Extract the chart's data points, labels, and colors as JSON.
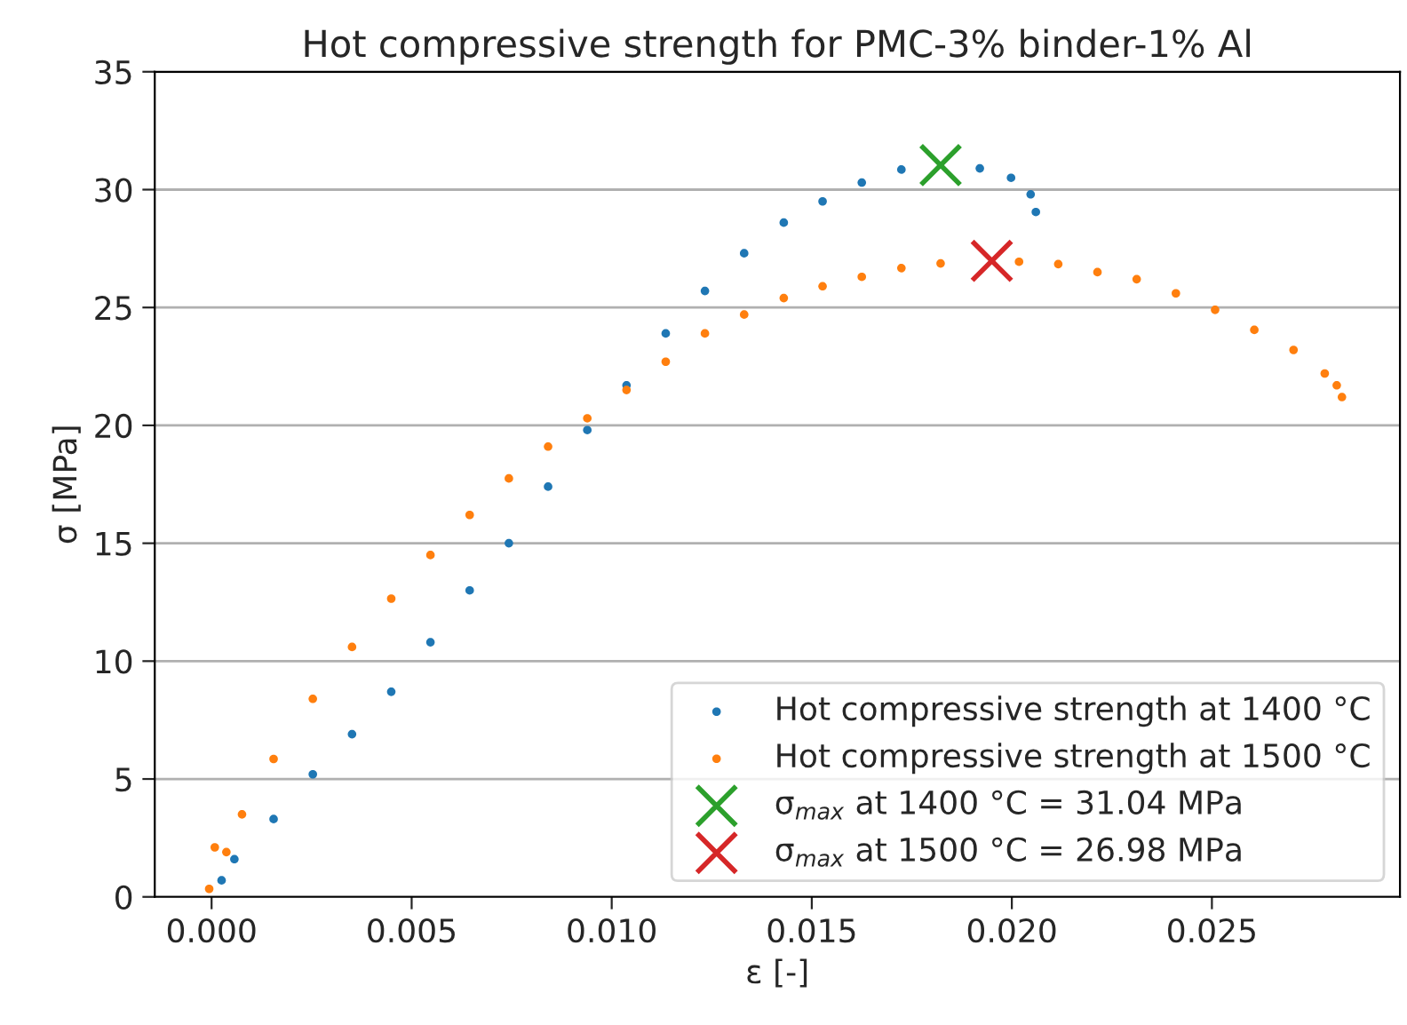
{
  "chart_data": {
    "type": "scatter",
    "title": "Hot compressive strength for PMC-3% binder-1% Al",
    "xlabel": "ε [-]",
    "ylabel": "σ [MPa]",
    "xlim": [
      -0.00142,
      0.0297
    ],
    "ylim": [
      0,
      35
    ],
    "xticks": [
      {
        "value": 0,
        "label": "0.000"
      },
      {
        "value": 0.005,
        "label": "0.005"
      },
      {
        "value": 0.01,
        "label": "0.010"
      },
      {
        "value": 0.015,
        "label": "0.015"
      },
      {
        "value": 0.02,
        "label": "0.020"
      },
      {
        "value": 0.025,
        "label": "0.025"
      }
    ],
    "yticks": [
      0,
      5,
      10,
      15,
      20,
      25,
      30,
      35
    ],
    "grid": "y",
    "legend": "bottom right",
    "series": [
      {
        "name": "Hot compressive strength at 1400 °C",
        "color": "#1f77b4",
        "marker": "circle",
        "x": [
          0.00025,
          0.00057,
          0.00155,
          0.00253,
          0.00351,
          0.00449,
          0.00547,
          0.00645,
          0.00743,
          0.00841,
          0.00939,
          0.01037,
          0.01135,
          0.01233,
          0.01331,
          0.0143,
          0.01527,
          0.01625,
          0.01724,
          0.0192,
          0.01998,
          0.02047,
          0.0206
        ],
        "values": [
          0.7,
          1.6,
          3.3,
          5.2,
          6.9,
          8.7,
          10.8,
          13.0,
          15.0,
          17.4,
          19.8,
          21.7,
          23.9,
          25.7,
          27.3,
          28.6,
          29.5,
          30.3,
          30.85,
          30.9,
          30.5,
          29.8,
          29.05
        ]
      },
      {
        "name": "Hot compressive strength at 1500 °C",
        "color": "#ff7f0e",
        "marker": "circle",
        "x": [
          -6e-05,
          8e-05,
          0.00037,
          0.00076,
          0.00155,
          0.00253,
          0.00351,
          0.00449,
          0.00547,
          0.00645,
          0.00743,
          0.00841,
          0.00939,
          0.01037,
          0.01135,
          0.01233,
          0.01331,
          0.0143,
          0.01527,
          0.01625,
          0.01724,
          0.01822,
          0.02018,
          0.02116,
          0.02214,
          0.02312,
          0.0241,
          0.02508,
          0.02606,
          0.02704,
          0.02782,
          0.02812,
          0.02825
        ],
        "values": [
          0.34,
          2.1,
          1.9,
          3.5,
          5.85,
          8.4,
          10.6,
          12.65,
          14.5,
          16.2,
          17.75,
          19.1,
          20.3,
          21.5,
          22.7,
          23.9,
          24.7,
          25.4,
          25.9,
          26.3,
          26.67,
          26.87,
          26.94,
          26.84,
          26.5,
          26.2,
          25.6,
          24.9,
          24.05,
          23.2,
          22.2,
          21.7,
          21.2
        ]
      },
      {
        "name": "σ$_{max}$ at 1400 °C = 31.04 MPa",
        "color": "#2ca02c",
        "marker": "cross",
        "x": [
          0.01822
        ],
        "values": [
          31.04
        ]
      },
      {
        "name": "σ$_{max}$ at 1500 °C = 26.98 MPa",
        "color": "#d62728",
        "marker": "cross",
        "x": [
          0.0195
        ],
        "values": [
          26.98
        ]
      }
    ]
  }
}
